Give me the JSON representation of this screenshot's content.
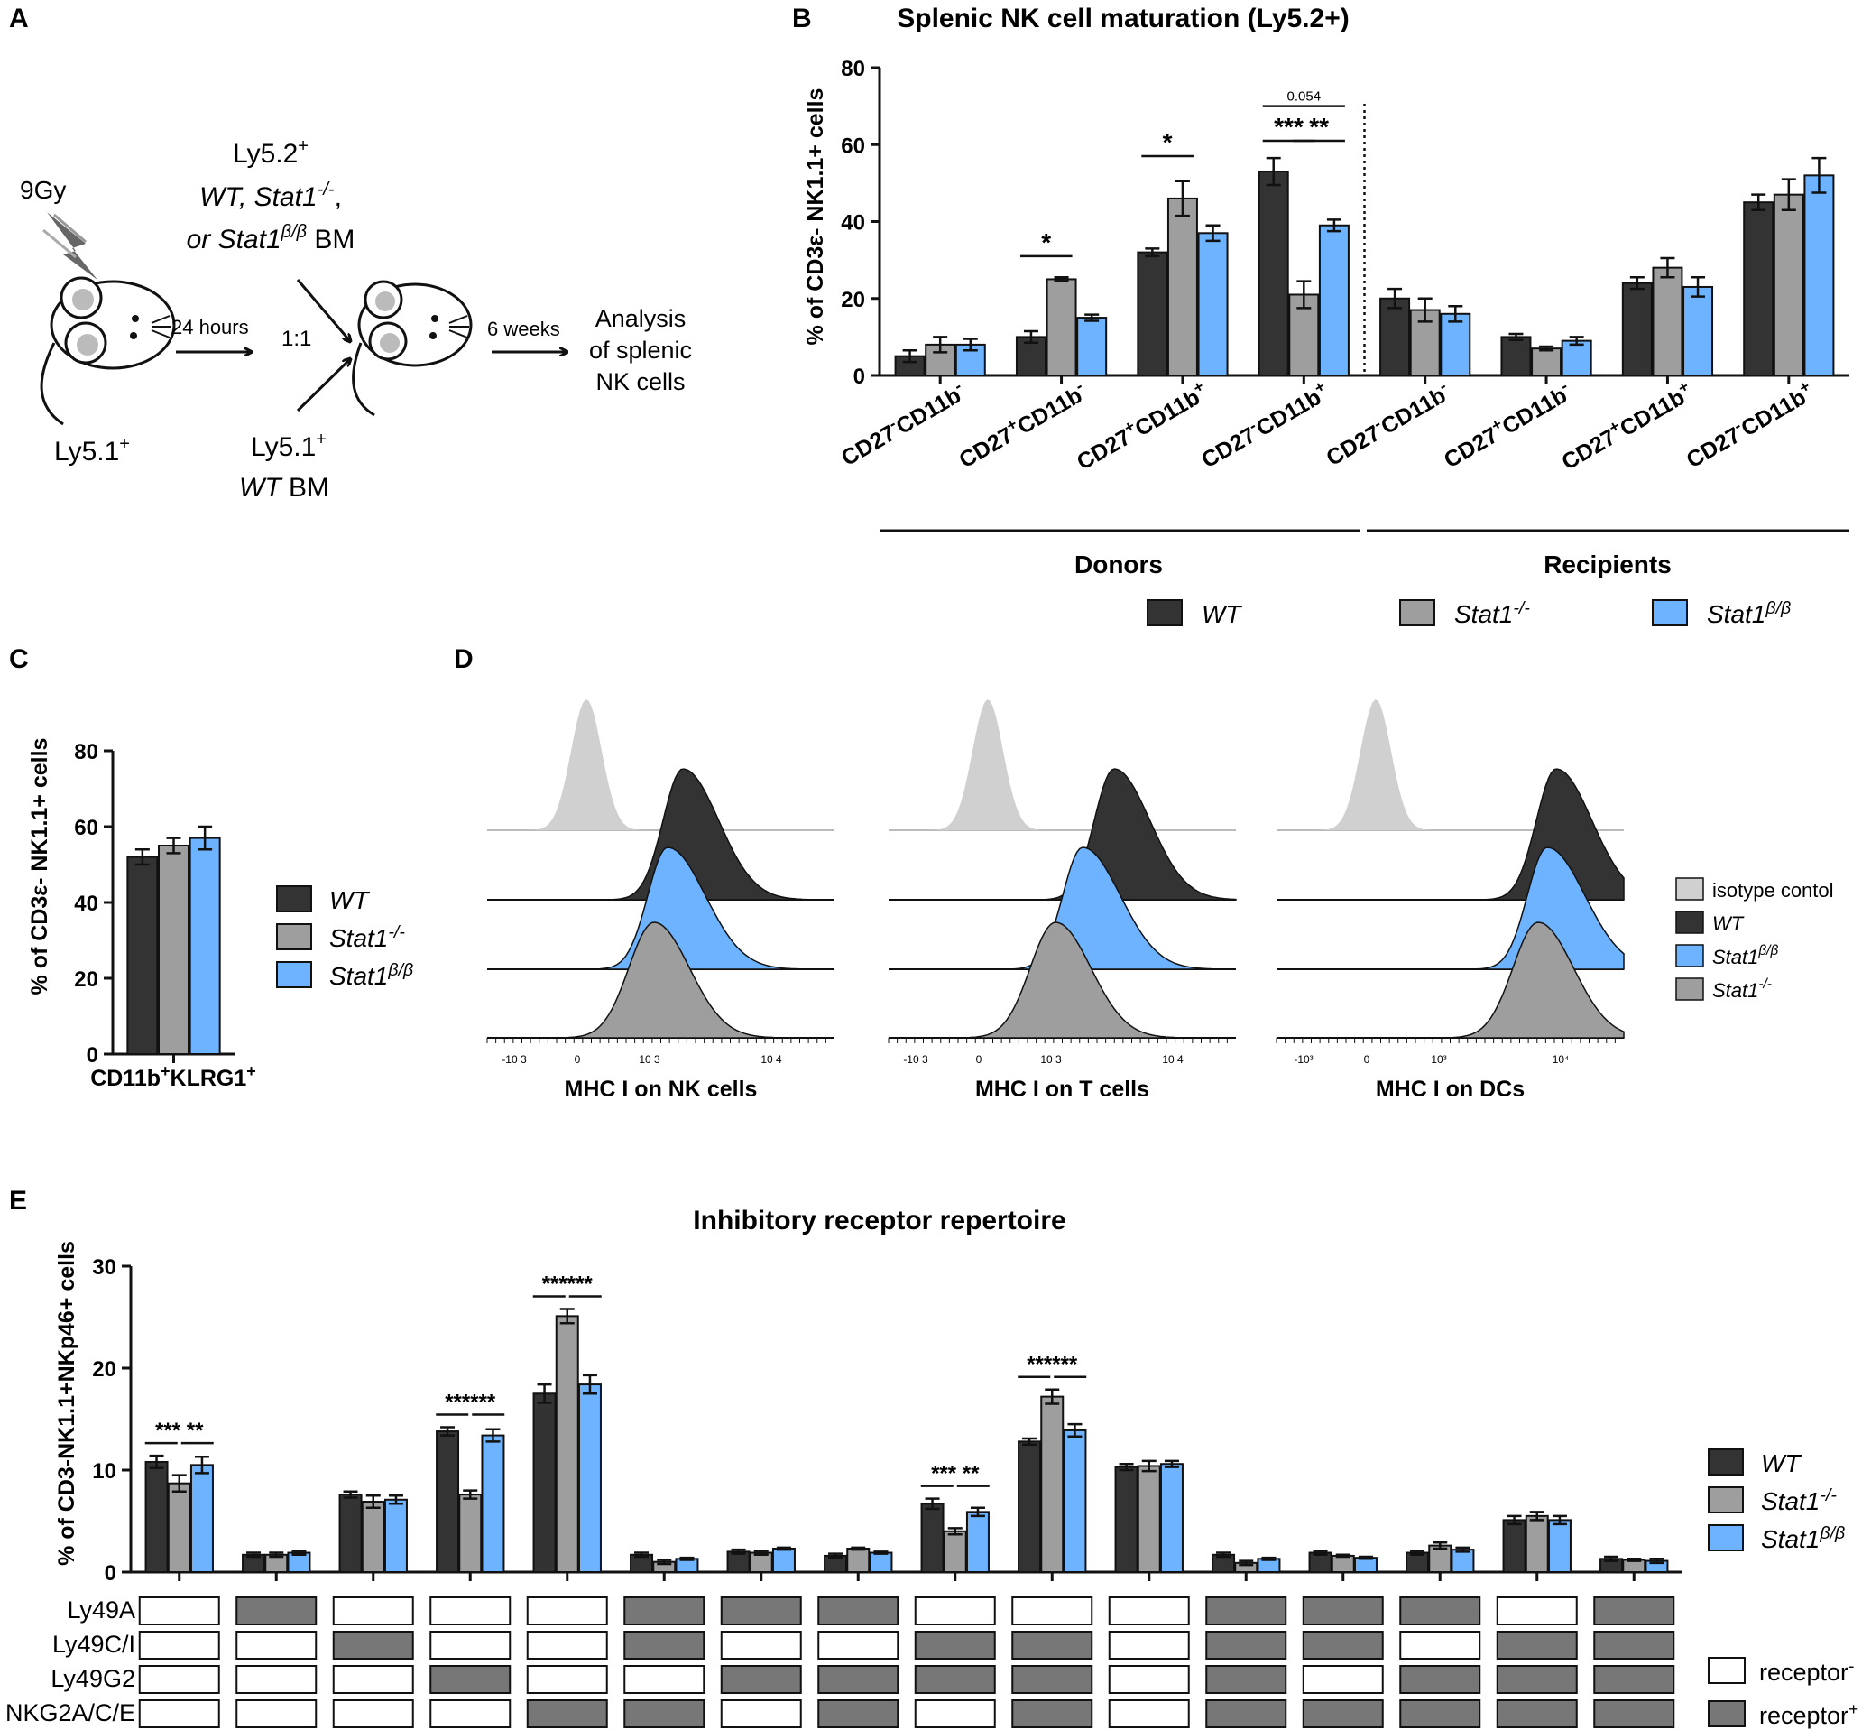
{
  "panel_letters": {
    "a": "A",
    "b": "B",
    "c": "C",
    "d": "D",
    "e": "E"
  },
  "schematic": {
    "irradiation": "9Gy",
    "recipient_label": "Ly5.1",
    "recipient_sup": "+",
    "arrow1_label": "24 hours",
    "ratio_label": "1:1",
    "donor1_line1": "Ly5.2",
    "donor1_line1_sup": "+",
    "donor1_line2a": "WT, Stat1",
    "donor1_line2_sup": "-/-",
    "donor1_line2b": ",",
    "donor1_line3a": "or Stat1",
    "donor1_line3_sup": "β/β",
    "donor1_line3b": " BM",
    "donor2_line1": "Ly5.1",
    "donor2_line1_sup": "+",
    "donor2_line2a": "WT",
    "donor2_line2b": " BM",
    "arrow2_label": "6 weeks",
    "analysis_line1": "Analysis",
    "analysis_line2": "of splenic",
    "analysis_line3": "NK cells"
  },
  "colors": {
    "wt": "#333333",
    "ko": "#9e9e9e",
    "bb": "#6db3ff",
    "iso": "#d0d0d0",
    "receptor_pos": "#777777",
    "receptor_neg": "#ffffff"
  },
  "legend_entries": [
    {
      "key": "wt",
      "base": "WT",
      "sup": ""
    },
    {
      "key": "ko",
      "base": "Stat1",
      "sup": "-/-"
    },
    {
      "key": "bb",
      "base": "Stat1",
      "sup": "β/β"
    }
  ],
  "chart_data": [
    {
      "id": "B",
      "type": "bar",
      "title": "Splenic NK cell maturation (Ly5.2+)",
      "ylabel": "% of CD3ε- NK1.1+ cells",
      "ylim": [
        0,
        80
      ],
      "yticks": [
        0,
        20,
        40,
        60,
        80
      ],
      "categories": [
        "CD27-CD11b-",
        "CD27+CD11b-",
        "CD27+CD11b+",
        "CD27-CD11b+",
        "CD27-CD11b-",
        "CD27+CD11b-",
        "CD27+CD11b+",
        "CD27-CD11b+"
      ],
      "category_parts": [
        [
          "CD27",
          "-",
          "CD11b",
          "-"
        ],
        [
          "CD27",
          "+",
          "CD11b",
          "-"
        ],
        [
          "CD27",
          "+",
          "CD11b",
          "+"
        ],
        [
          "CD27",
          "-",
          "CD11b",
          "+"
        ],
        [
          "CD27",
          "-",
          "CD11b",
          "-"
        ],
        [
          "CD27",
          "+",
          "CD11b",
          "-"
        ],
        [
          "CD27",
          "+",
          "CD11b",
          "+"
        ],
        [
          "CD27",
          "-",
          "CD11b",
          "+"
        ]
      ],
      "groups": [
        "Donors",
        "Recipients"
      ],
      "series": [
        {
          "name": "WT",
          "key": "wt",
          "values": [
            5,
            10,
            32,
            53,
            20,
            10,
            24,
            45
          ],
          "errors": [
            1.5,
            1.5,
            1,
            3.5,
            2.5,
            0.8,
            1.5,
            2
          ]
        },
        {
          "name": "Stat1-/-",
          "key": "ko",
          "values": [
            8,
            25,
            46,
            21,
            17,
            7,
            28,
            47
          ],
          "errors": [
            2,
            0.5,
            4.5,
            3.5,
            3,
            0.5,
            2.5,
            4
          ]
        },
        {
          "name": "Stat1β/β",
          "key": "bb",
          "values": [
            8,
            15,
            37,
            39,
            16,
            9,
            23,
            52
          ],
          "errors": [
            1.5,
            0.8,
            2,
            1.5,
            2,
            1,
            2.5,
            4.5
          ]
        }
      ],
      "significance": [
        {
          "cat": 1,
          "from": 0,
          "to": 1,
          "label": "*",
          "y": 31
        },
        {
          "cat": 2,
          "from": 0,
          "to": 1,
          "label": "*",
          "y": 57
        },
        {
          "cat": 3,
          "from": 0,
          "to": 1,
          "label": "***",
          "y": 61
        },
        {
          "cat": 3,
          "from": 1,
          "to": 2,
          "label": "**",
          "y": 61
        },
        {
          "cat": 3,
          "from": 0,
          "to": 2,
          "label": "0.054",
          "y": 70
        }
      ]
    },
    {
      "id": "C",
      "type": "bar",
      "ylabel": "% of CD3ε- NK1.1+ cells",
      "ylim": [
        0,
        80
      ],
      "yticks": [
        0,
        20,
        40,
        60,
        80
      ],
      "categories": [
        "CD11b+KLRG1+"
      ],
      "category_parts": [
        [
          "CD11b",
          "+",
          "KLRG1",
          "+"
        ]
      ],
      "series": [
        {
          "name": "WT",
          "key": "wt",
          "values": [
            52
          ],
          "errors": [
            2
          ]
        },
        {
          "name": "Stat1-/-",
          "key": "ko",
          "values": [
            55
          ],
          "errors": [
            2
          ]
        },
        {
          "name": "Stat1β/β",
          "key": "bb",
          "values": [
            57
          ],
          "errors": [
            3
          ]
        }
      ]
    },
    {
      "id": "D",
      "type": "histogram",
      "panels": [
        {
          "xlabel": "MHC I on NK cells",
          "ticks": [
            "-10 3",
            "0",
            "10 3",
            "10 4"
          ]
        },
        {
          "xlabel": "MHC I on T cells",
          "ticks": [
            "-10 3",
            "0",
            "10 3",
            "10 4"
          ]
        },
        {
          "xlabel": "MHC I on DCs",
          "ticks": [
            "-10³",
            "0",
            "10³",
            "10⁴"
          ]
        }
      ],
      "legend": [
        {
          "key": "iso",
          "base": "isotype contol",
          "sup": "",
          "italic": false
        },
        {
          "key": "wt",
          "base": "WT",
          "sup": "",
          "italic": true
        },
        {
          "key": "bb",
          "base": "Stat1",
          "sup": "β/β",
          "italic": true
        },
        {
          "key": "ko",
          "base": "Stat1",
          "sup": "-/-",
          "italic": true
        }
      ]
    },
    {
      "id": "E",
      "type": "bar",
      "title": "Inhibitory receptor repertoire",
      "ylabel": "% of CD3-NK1.1+NKp46+ cells",
      "ylim": [
        0,
        30
      ],
      "yticks": [
        0,
        10,
        20,
        30
      ],
      "series": [
        {
          "name": "WT",
          "key": "wt",
          "values": [
            10.8,
            1.7,
            7.6,
            13.8,
            17.5,
            1.7,
            2.0,
            1.6,
            6.7,
            12.8,
            10.3,
            1.7,
            1.9,
            1.9,
            5.1,
            1.3
          ],
          "errors": [
            0.6,
            0.2,
            0.3,
            0.4,
            0.9,
            0.2,
            0.2,
            0.2,
            0.5,
            0.3,
            0.3,
            0.2,
            0.2,
            0.2,
            0.4,
            0.2
          ]
        },
        {
          "name": "Stat1-/-",
          "key": "ko",
          "values": [
            8.7,
            1.7,
            6.9,
            7.6,
            25.1,
            1.0,
            1.9,
            2.3,
            4.0,
            17.2,
            10.4,
            0.9,
            1.6,
            2.6,
            5.5,
            1.2
          ],
          "errors": [
            0.8,
            0.2,
            0.6,
            0.4,
            0.7,
            0.2,
            0.2,
            0.1,
            0.3,
            0.7,
            0.5,
            0.2,
            0.1,
            0.3,
            0.4,
            0.1
          ]
        },
        {
          "name": "Stat1β/β",
          "key": "bb",
          "values": [
            10.5,
            1.9,
            7.1,
            13.4,
            18.4,
            1.3,
            2.3,
            1.9,
            5.9,
            13.9,
            10.6,
            1.3,
            1.4,
            2.2,
            5.1,
            1.1
          ],
          "errors": [
            0.8,
            0.2,
            0.4,
            0.6,
            0.9,
            0.1,
            0.1,
            0.1,
            0.4,
            0.6,
            0.3,
            0.1,
            0.1,
            0.2,
            0.4,
            0.2
          ]
        }
      ],
      "significance": [
        {
          "cat": 0,
          "label": "*** **"
        },
        {
          "cat": 3,
          "label": "******"
        },
        {
          "cat": 4,
          "label": "******"
        },
        {
          "cat": 8,
          "label": "*** **"
        },
        {
          "cat": 9,
          "label": "******"
        }
      ],
      "receptor_names": [
        "Ly49A",
        "Ly49C/I",
        "Ly49G2",
        "NKG2A/C/E"
      ],
      "receptor_matrix": [
        [
          0,
          1,
          0,
          0,
          0,
          1,
          1,
          1,
          0,
          0,
          0,
          1,
          1,
          1,
          0,
          1
        ],
        [
          0,
          0,
          1,
          0,
          0,
          1,
          0,
          0,
          1,
          1,
          0,
          1,
          1,
          0,
          1,
          1
        ],
        [
          0,
          0,
          0,
          1,
          0,
          0,
          1,
          1,
          1,
          1,
          0,
          1,
          0,
          1,
          1,
          1
        ],
        [
          0,
          0,
          0,
          0,
          1,
          1,
          0,
          1,
          0,
          1,
          0,
          1,
          1,
          1,
          1,
          1
        ]
      ],
      "receptor_legend": [
        {
          "state": "neg",
          "base": "receptor",
          "sup": "-"
        },
        {
          "state": "pos",
          "base": "receptor",
          "sup": "+"
        }
      ]
    }
  ]
}
